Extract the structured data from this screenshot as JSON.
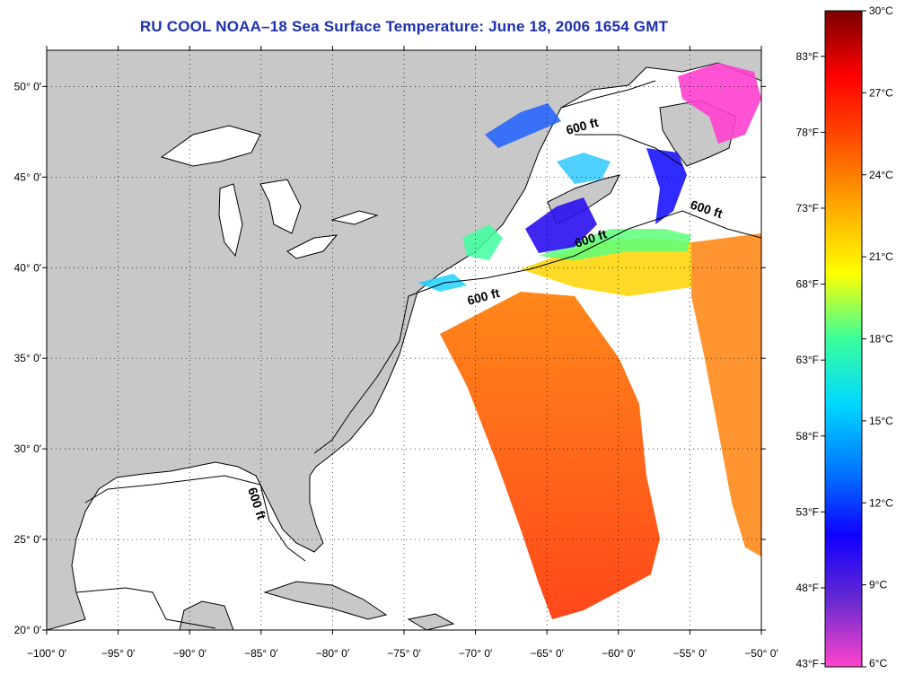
{
  "title": "RU COOL  NOAA–18  Sea Surface Temperature:  June 18, 2006 1654 GMT",
  "map": {
    "lon_range": [
      -100,
      -50
    ],
    "lat_range": [
      20,
      52
    ],
    "lon_ticks": [
      "−100° 0′",
      "−95° 0′",
      "−90° 0′",
      "−85° 0′",
      "−80° 0′",
      "−75° 0′",
      "−70° 0′",
      "−65° 0′",
      "−60° 0′",
      "−55° 0′",
      "−50° 0′"
    ],
    "lon_values": [
      -100,
      -95,
      -90,
      -85,
      -80,
      -75,
      -70,
      -65,
      -60,
      -55,
      -50
    ],
    "lat_ticks": [
      "20° 0′",
      "25° 0′",
      "30° 0′",
      "35° 0′",
      "40° 0′",
      "45° 0′",
      "50° 0′"
    ],
    "lat_values": [
      20,
      25,
      30,
      35,
      40,
      45,
      50
    ],
    "grid": "dotted",
    "land_color": "#c8c8c8",
    "contour_label": "600 ft"
  },
  "colorbar": {
    "celsius_labels": [
      "30°C",
      "27°C",
      "24°C",
      "21°C",
      "18°C",
      "15°C",
      "12°C",
      "9°C",
      "6°C"
    ],
    "celsius_values": [
      30,
      27,
      24,
      21,
      18,
      15,
      12,
      9,
      6
    ],
    "fahrenheit_labels": [
      "83°F",
      "78°F",
      "73°F",
      "68°F",
      "63°F",
      "58°F",
      "53°F",
      "48°F",
      "43°F"
    ],
    "fahrenheit_values": [
      83,
      78,
      73,
      68,
      63,
      58,
      53,
      48,
      43
    ],
    "range_c": [
      6,
      30
    ],
    "colors": [
      "#ff44cc",
      "#6a2ad0",
      "#1000ff",
      "#0078ff",
      "#00d8ff",
      "#3aff9c",
      "#ffff00",
      "#ffaa00",
      "#ff5000",
      "#ff0000",
      "#7a0000"
    ]
  }
}
